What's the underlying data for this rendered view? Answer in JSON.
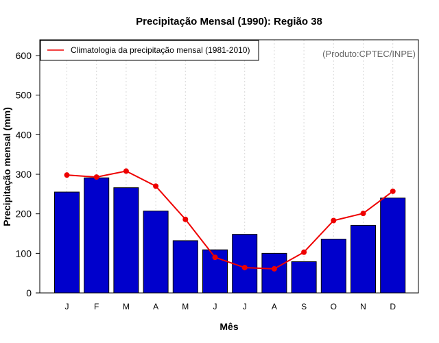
{
  "chart_data": {
    "type": "bar",
    "title": "Precipitação Mensal (1990): Região 38",
    "xlabel": "Mês",
    "ylabel": "Precipitação mensal (mm)",
    "ylim": [
      0,
      640
    ],
    "yticks": [
      0,
      100,
      200,
      300,
      400,
      500,
      600
    ],
    "grid": "vertical dotted",
    "categories": [
      "J",
      "F",
      "M",
      "A",
      "M",
      "J",
      "J",
      "A",
      "S",
      "O",
      "N",
      "D"
    ],
    "series": [
      {
        "name": "Precipitação mensal (1990)",
        "type": "bar",
        "color": "#0000cc",
        "values": [
          255,
          291,
          266,
          207,
          132,
          109,
          148,
          100,
          79,
          136,
          171,
          240
        ]
      },
      {
        "name": "Climatologia da precipitação mensal (1981-2010)",
        "type": "line",
        "color": "#ee0000",
        "values": [
          298,
          293,
          308,
          270,
          186,
          90,
          64,
          61,
          103,
          183,
          201,
          257
        ]
      }
    ],
    "legend": {
      "position": "top-left",
      "entries": [
        "Climatologia da precipitação mensal (1981-2010)"
      ]
    },
    "annotation": "(Produto:CPTEC/INPE)"
  }
}
